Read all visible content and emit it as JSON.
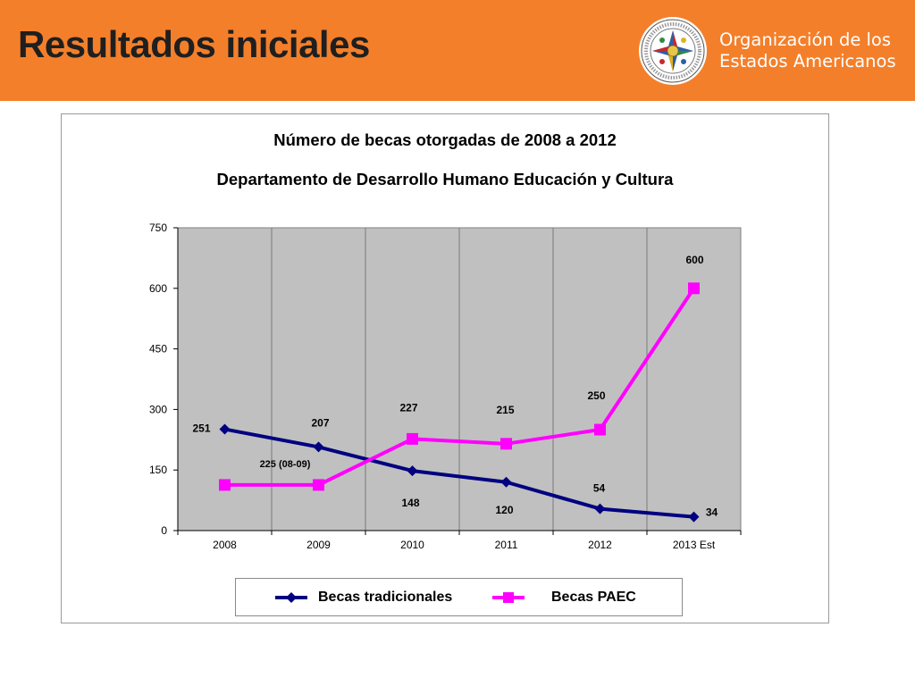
{
  "slide": {
    "title": "Resultados iniciales",
    "organization": {
      "line1": "Organización de los",
      "line2": "Estados Americanos",
      "seal_text": "ORGANIZACION DE LOS ESTADOS AMERICANOS"
    }
  },
  "colors": {
    "header": "#f47f2a",
    "plot_bg": "#c0c0c0",
    "series_tradicionales": "#000080",
    "series_paec": "#ff00ff"
  },
  "chart_data": {
    "type": "line",
    "title": "Número de becas otorgadas de 2008 a 2012",
    "subtitle": "Departamento de Desarrollo Humano Educación y Cultura",
    "categories": [
      "2008",
      "2009",
      "2010",
      "2011",
      "2012",
      "2013 Est"
    ],
    "ylim": [
      0,
      750
    ],
    "yticks": [
      "0",
      "150",
      "300",
      "450",
      "600",
      "750"
    ],
    "grid": "vertical",
    "legend_position": "bottom",
    "series": [
      {
        "name": "Becas tradicionales",
        "marker": "diamond",
        "values": [
          251,
          207,
          148,
          120,
          54,
          34
        ],
        "labels": [
          "251",
          "207",
          "148",
          "120",
          "54",
          "34"
        ]
      },
      {
        "name": "Becas PAEC",
        "marker": "square",
        "values": [
          113,
          113,
          227,
          215,
          250,
          600
        ],
        "labels": [
          "",
          "",
          "227",
          "215",
          "250",
          "600"
        ]
      }
    ],
    "annotations": [
      "225 (08-09)"
    ]
  }
}
